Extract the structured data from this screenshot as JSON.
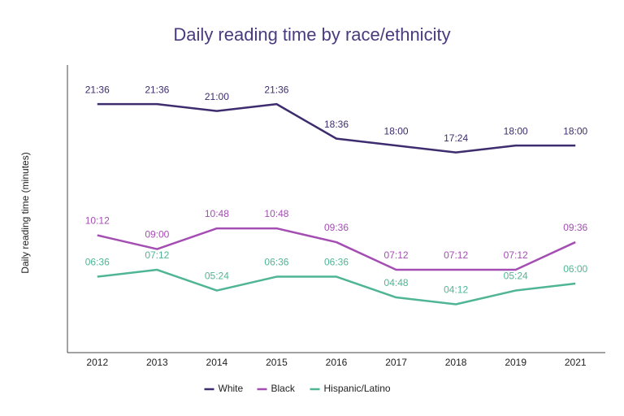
{
  "chart_data": {
    "type": "line",
    "title": "Daily reading time by race/ethnicity",
    "y_label": "Daily reading time (minutes)",
    "categories": [
      "2012",
      "2013",
      "2014",
      "2015",
      "2016",
      "2017",
      "2018",
      "2019",
      "2021"
    ],
    "ylim": [
      0,
      25
    ],
    "series": [
      {
        "name": "White",
        "color": "#3d2c6e",
        "values": [
          21.6,
          21.6,
          21,
          21.6,
          18.6,
          18,
          17.4,
          18,
          18
        ],
        "value_labels": [
          "21:36",
          "21:36",
          "21:00",
          "21:36",
          "18:36",
          "18:00",
          "17:24",
          "18:00",
          "18:00"
        ]
      },
      {
        "name": "Black",
        "color": "#a44db3",
        "values": [
          10.2,
          9,
          10.8,
          10.8,
          9.6,
          7.2,
          7.2,
          7.2,
          9.6
        ],
        "value_labels": [
          "10:12",
          "09:00",
          "10:48",
          "10:48",
          "09:36",
          "07:12",
          "07:12",
          "07:12",
          "09:36"
        ]
      },
      {
        "name": "Hispanic/Latino",
        "color": "#4fb595",
        "values": [
          6.6,
          7.2,
          5.4,
          6.6,
          6.6,
          4.8,
          4.2,
          5.4,
          6
        ],
        "value_labels": [
          "06:36",
          "07:12",
          "05:24",
          "06:36",
          "06:36",
          "04:48",
          "04:12",
          "05:24",
          "06:00"
        ]
      }
    ]
  }
}
